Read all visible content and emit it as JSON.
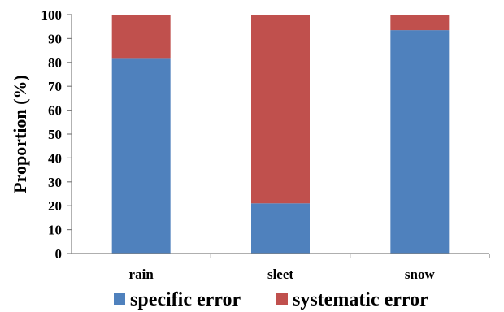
{
  "chart_data": {
    "type": "bar",
    "stacked": true,
    "categories": [
      "rain",
      "sleet",
      "snow"
    ],
    "series": [
      {
        "name": "specific error",
        "values": [
          81.5,
          21,
          93.5
        ],
        "color": "#4f81bd"
      },
      {
        "name": "systematic error",
        "values": [
          18.5,
          79,
          6.5
        ],
        "color": "#c0504d"
      }
    ],
    "ylabel": "Proportion (%)",
    "xlabel": "",
    "ylim": [
      0,
      100
    ],
    "yticks": [
      "0",
      "10",
      "20",
      "30",
      "40",
      "50",
      "60",
      "70",
      "80",
      "90",
      "100"
    ],
    "grid": false,
    "legend_position": "bottom"
  }
}
